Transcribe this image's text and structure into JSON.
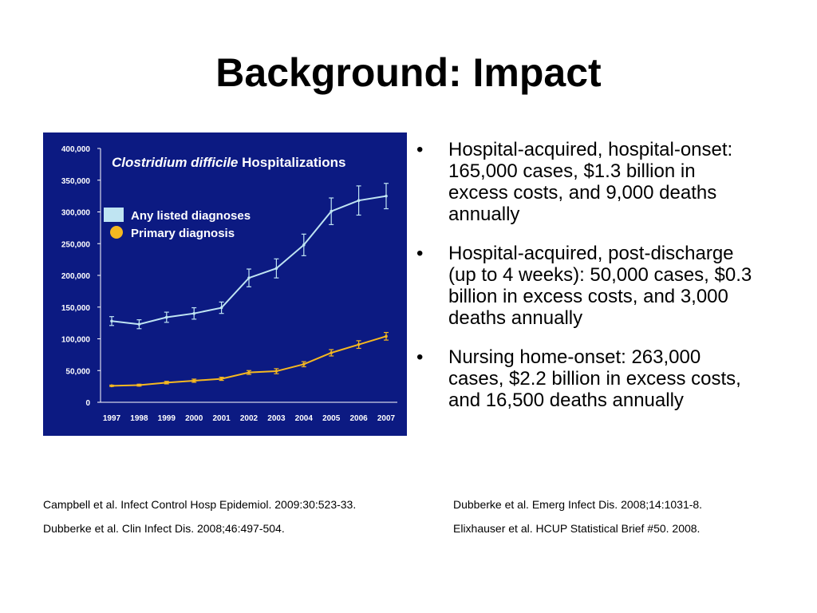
{
  "slide": {
    "title": "Background: Impact"
  },
  "bullets": [
    {
      "text": "Hospital-acquired, hospital-onset: 165,000 cases, $1.3 billion in excess costs, and 9,000 deaths annually"
    },
    {
      "text": "Hospital-acquired, post-discharge (up to 4 weeks): 50,000 cases, $0.3 billion in excess costs, and 3,000 deaths annually"
    },
    {
      "text": "Nursing home-onset: 263,000 cases, $2.2 billion in excess costs, and 16,500 deaths annually"
    }
  ],
  "bullet_symbol": "•",
  "references": {
    "left_top": "Campbell et al. Infect Control Hosp Epidemiol. 2009:30:523-33.",
    "right_top": "Dubberke et al. Emerg Infect Dis. 2008;14:1031-8.",
    "left_bottom": "Dubberke et al. Clin Infect Dis. 2008;46:497-504.",
    "right_bottom": "Elixhauser et al. HCUP Statistical Brief #50. 2008."
  },
  "colors": {
    "panel_background": "#0c1a82",
    "any_listed": "#bfe4f2",
    "primary": "#f5b820",
    "axis_text": "#ffffff"
  },
  "chart_data": {
    "type": "line",
    "title_italic": "Clostridium difficile",
    "title_rest": "Hospitalizations",
    "x": [
      "1997",
      "1998",
      "1999",
      "2000",
      "2001",
      "2002",
      "2003",
      "2004",
      "2005",
      "2006",
      "2007"
    ],
    "ylim": [
      0,
      400000
    ],
    "yticks": [
      "0",
      "50,000",
      "100,000",
      "150,000",
      "200,000",
      "250,000",
      "300,000",
      "350,000",
      "400,000"
    ],
    "ytick_values": [
      0,
      50000,
      100000,
      150000,
      200000,
      250000,
      300000,
      350000,
      400000
    ],
    "legend_position": "top-left",
    "series": [
      {
        "name": "Any listed diagnoses",
        "marker": "square",
        "values": [
          128000,
          123000,
          134000,
          140000,
          149000,
          196000,
          211000,
          248000,
          301000,
          318000,
          325000
        ],
        "error": [
          7000,
          7000,
          8000,
          9000,
          9000,
          14000,
          15000,
          17000,
          21000,
          23000,
          20000
        ]
      },
      {
        "name": "Primary diagnosis",
        "marker": "circle",
        "values": [
          26000,
          27000,
          31000,
          34000,
          37000,
          47000,
          49000,
          60000,
          78000,
          91000,
          104000
        ],
        "error": [
          1000,
          1500,
          2000,
          2500,
          2500,
          3000,
          4000,
          4000,
          5000,
          6000,
          6000
        ]
      }
    ]
  }
}
